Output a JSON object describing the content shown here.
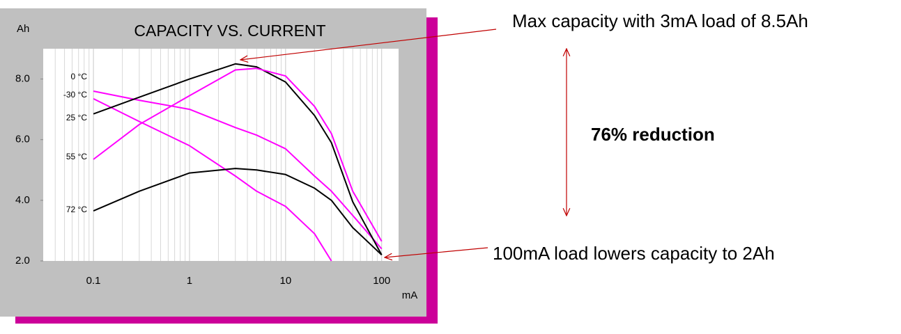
{
  "chart_data": {
    "type": "line",
    "title": "CAPACITY VS. CURRENT",
    "y_label": "Ah",
    "x_label": "mA",
    "x": [
      0.1,
      0.3,
      1,
      3,
      5,
      10,
      20,
      30,
      50,
      100
    ],
    "series": [
      {
        "name": "0 °C",
        "color": "#ff00ff",
        "values": [
          7.6,
          7.3,
          7.0,
          6.4,
          6.15,
          5.7,
          4.8,
          4.3,
          3.5,
          2.4
        ]
      },
      {
        "name": "-30 °C",
        "color": "#ff00ff",
        "values": [
          7.35,
          6.6,
          5.8,
          4.8,
          4.3,
          3.8,
          2.9,
          2.0,
          null,
          null
        ]
      },
      {
        "name": "25 °C",
        "color": "#000000",
        "values": [
          6.85,
          7.4,
          8.0,
          8.5,
          8.4,
          7.9,
          6.8,
          5.9,
          3.95,
          2.2
        ]
      },
      {
        "name": "55 °C",
        "color": "#ff00ff",
        "values": [
          5.35,
          6.5,
          7.45,
          8.3,
          8.35,
          8.1,
          7.1,
          6.2,
          4.3,
          2.65
        ]
      },
      {
        "name": "72 °C",
        "color": "#000000",
        "values": [
          3.65,
          4.3,
          4.9,
          5.05,
          5.0,
          4.85,
          4.4,
          4.0,
          3.1,
          2.2
        ]
      }
    ],
    "log_x": true,
    "xlim": [
      0.03,
      150
    ],
    "ylim": [
      2,
      9
    ],
    "xticks": [
      0.1,
      1,
      10,
      100
    ],
    "xticks_minor": [
      0.04,
      0.05,
      0.06,
      0.07,
      0.08,
      0.09,
      0.2,
      0.3,
      0.4,
      0.5,
      0.6,
      0.7,
      0.8,
      0.9,
      2,
      3,
      4,
      5,
      6,
      7,
      8,
      9,
      20,
      30,
      40,
      50,
      60,
      70,
      80,
      90
    ],
    "yticks": [
      {
        "value": 2,
        "label": "2.0"
      },
      {
        "value": 4,
        "label": "4.0"
      },
      {
        "value": 6,
        "label": "6.0"
      },
      {
        "value": 8,
        "label": "8.0"
      }
    ],
    "grid": true,
    "annotations": [
      "Max capacity with 3mA load of 8.5Ah",
      "76% reduction",
      "100mA load lowers capacity to 2Ah"
    ]
  }
}
